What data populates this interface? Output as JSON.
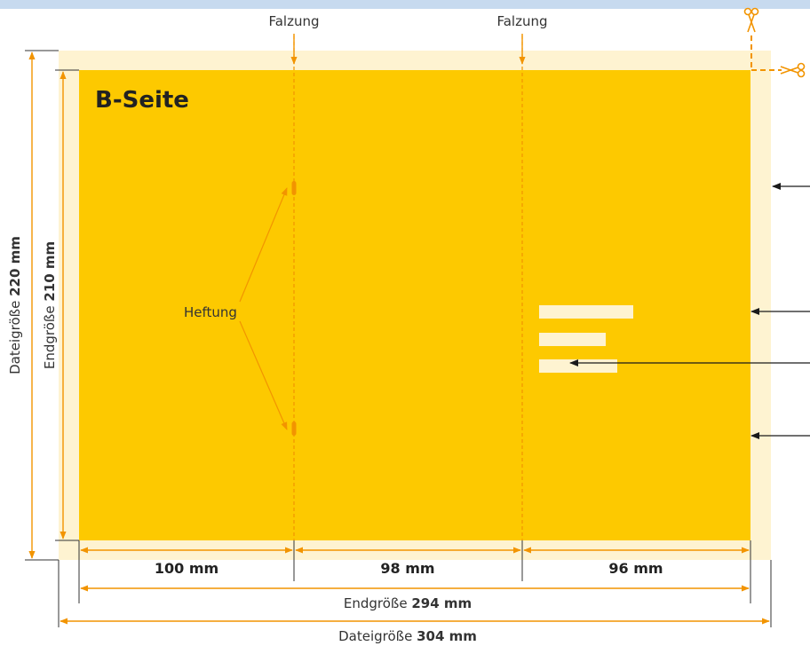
{
  "colors": {
    "bleed": "#FEF3D1",
    "page": "#FDC900",
    "accent": "#F29400",
    "text_stub": "#FEF3D1",
    "arrow": "#1a1a1a",
    "top_bar": "#C7DAEF"
  },
  "page_label": "B-Seite",
  "fold_labels": [
    "Falzung",
    "Falzung"
  ],
  "staple_label": "Heftung",
  "segments": [
    {
      "value": "100 mm"
    },
    {
      "value": "98 mm"
    },
    {
      "value": "96 mm"
    }
  ],
  "endgroesse": {
    "label": "Endgröße",
    "width": "294 mm",
    "height": "210 mm"
  },
  "dateigroesse": {
    "label": "Dateigröße",
    "width": "304 mm",
    "height": "220 mm"
  },
  "icons": [
    "scissors-icon",
    "scissors-icon"
  ]
}
